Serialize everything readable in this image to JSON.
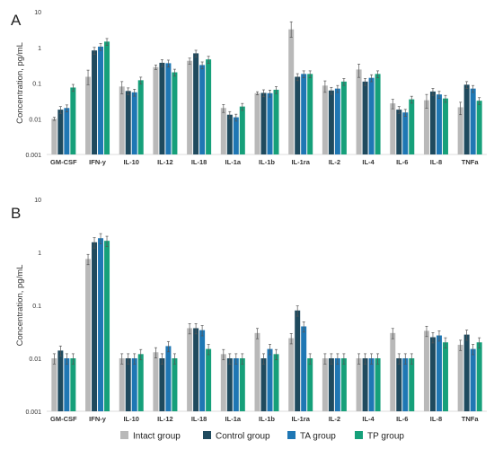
{
  "legend": [
    {
      "name": "Intact group",
      "color": "#b9b9b9"
    },
    {
      "name": "Control group",
      "color": "#1f4a5e"
    },
    {
      "name": "TA group",
      "color": "#1f77b4"
    },
    {
      "name": "TP group",
      "color": "#16a07a"
    }
  ],
  "chart_data": [
    {
      "type": "bar",
      "panel": "A",
      "ylabel": "Concentration, pg/mL",
      "yscale": "log",
      "ylim": [
        0.001,
        10
      ],
      "yticks": [
        "10",
        "1",
        "0.1",
        "0.01",
        "0.001"
      ],
      "categories": [
        "GM-CSF",
        "IFN-y",
        "IL-10",
        "IL-12",
        "IL-18",
        "IL-1a",
        "IL-1b",
        "IL-1ra",
        "IL-2",
        "IL-4",
        "IL-6",
        "IL-8",
        "TNFa"
      ],
      "series": [
        {
          "name": "Intact group",
          "values": [
            0.01,
            0.15,
            0.08,
            0.28,
            0.42,
            0.02,
            0.052,
            3.2,
            0.085,
            0.24,
            0.027,
            0.033,
            0.021
          ],
          "errors": [
            0.001,
            0.08,
            0.03,
            0.04,
            0.08,
            0.005,
            0.005,
            2.0,
            0.03,
            0.1,
            0.008,
            0.015,
            0.008
          ]
        },
        {
          "name": "Control group",
          "values": [
            0.018,
            0.82,
            0.06,
            0.37,
            0.68,
            0.013,
            0.053,
            0.15,
            0.062,
            0.11,
            0.018,
            0.058,
            0.09
          ]
        },
        {
          "name": "TA group",
          "values": [
            0.02,
            1.05,
            0.055,
            0.36,
            0.32,
            0.011,
            0.052,
            0.18,
            0.07,
            0.14,
            0.015,
            0.048,
            0.07
          ]
        },
        {
          "name": "TP group",
          "values": [
            0.075,
            1.45,
            0.12,
            0.2,
            0.46,
            0.022,
            0.065,
            0.18,
            0.11,
            0.18,
            0.035,
            0.037,
            0.032
          ]
        }
      ]
    },
    {
      "type": "bar",
      "panel": "B",
      "ylabel": "Concentration, pg/mL",
      "yscale": "log",
      "ylim": [
        0.001,
        10
      ],
      "yticks": [
        "10",
        "1",
        "0.1",
        "0.01",
        "0.001"
      ],
      "categories": [
        "GM-CSF",
        "IFN-y",
        "IL-10",
        "IL-12",
        "IL-18",
        "IL-1a",
        "IL-1b",
        "IL-1ra",
        "IL-2",
        "IL-4",
        "IL-6",
        "IL-8",
        "TNFa"
      ],
      "series": [
        {
          "name": "Intact group",
          "values": [
            0.01,
            0.75,
            0.01,
            0.013,
            0.037,
            0.012,
            0.03,
            0.024,
            0.01,
            0.01,
            0.03,
            0.033,
            0.018
          ]
        },
        {
          "name": "Control group",
          "values": [
            0.014,
            1.55,
            0.01,
            0.01,
            0.037,
            0.01,
            0.01,
            0.08,
            0.01,
            0.01,
            0.01,
            0.025,
            0.028
          ]
        },
        {
          "name": "TA group",
          "values": [
            0.01,
            1.85,
            0.01,
            0.017,
            0.034,
            0.01,
            0.015,
            0.04,
            0.01,
            0.01,
            0.01,
            0.027,
            0.015
          ]
        },
        {
          "name": "TP group",
          "values": [
            0.01,
            1.65,
            0.012,
            0.01,
            0.015,
            0.01,
            0.012,
            0.01,
            0.01,
            0.01,
            0.01,
            0.02,
            0.02
          ]
        }
      ]
    }
  ]
}
